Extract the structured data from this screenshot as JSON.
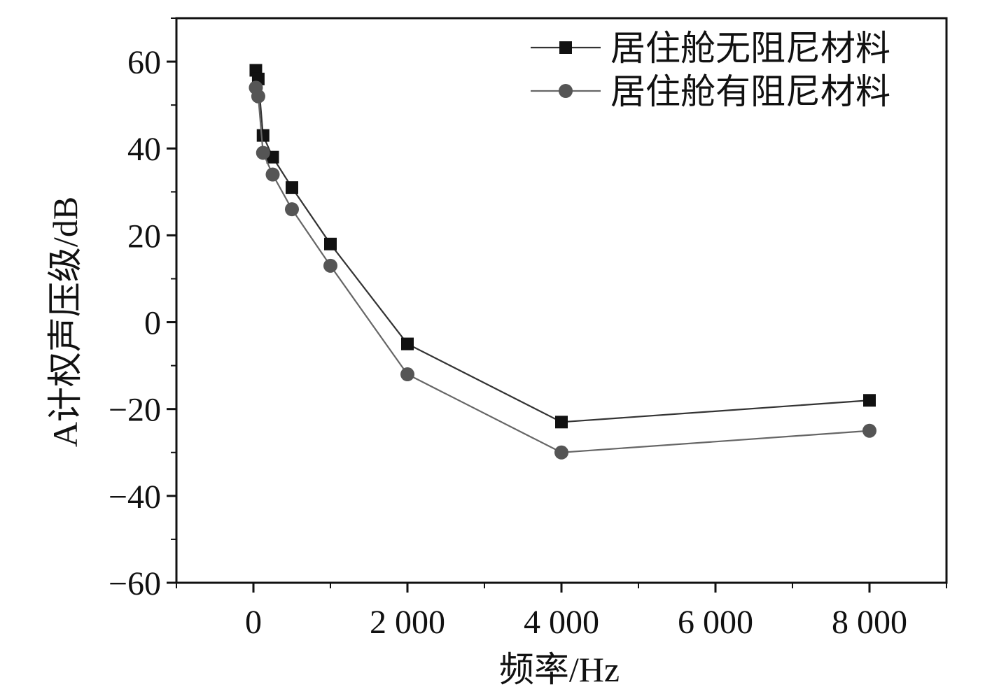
{
  "chart_data": {
    "type": "line",
    "title": "",
    "xlabel": "频率/Hz",
    "ylabel": "A计权声压级/dB",
    "xlim": [
      -1000,
      9000
    ],
    "ylim": [
      -60,
      70
    ],
    "grid": false,
    "legend_position": "top-right",
    "x_ticks": [
      {
        "value": 0,
        "label": "0"
      },
      {
        "value": 2000,
        "label": "2 000"
      },
      {
        "value": 4000,
        "label": "4 000"
      },
      {
        "value": 6000,
        "label": "6 000"
      },
      {
        "value": 8000,
        "label": "8 000"
      }
    ],
    "y_ticks": [
      {
        "value": 60,
        "label": "60"
      },
      {
        "value": 40,
        "label": "40"
      },
      {
        "value": 20,
        "label": "20"
      },
      {
        "value": 0,
        "label": "0"
      },
      {
        "value": -20,
        "label": "−20"
      },
      {
        "value": -40,
        "label": "−40"
      },
      {
        "value": -60,
        "label": "−60"
      }
    ],
    "series": [
      {
        "name": "居住舱无阻尼材料",
        "marker": "square",
        "color": "#111111",
        "line_color": "#333333",
        "x": [
          31.5,
          63,
          125,
          250,
          500,
          1000,
          2000,
          4000,
          8000
        ],
        "values": [
          58,
          56,
          43,
          38,
          31,
          18,
          -5,
          -23,
          -18
        ]
      },
      {
        "name": "居住舱有阻尼材料",
        "marker": "circle",
        "color": "#555555",
        "line_color": "#666666",
        "x": [
          31.5,
          63,
          125,
          250,
          500,
          1000,
          2000,
          4000,
          8000
        ],
        "values": [
          54,
          52,
          39,
          34,
          26,
          13,
          -12,
          -30,
          -25
        ]
      }
    ]
  }
}
